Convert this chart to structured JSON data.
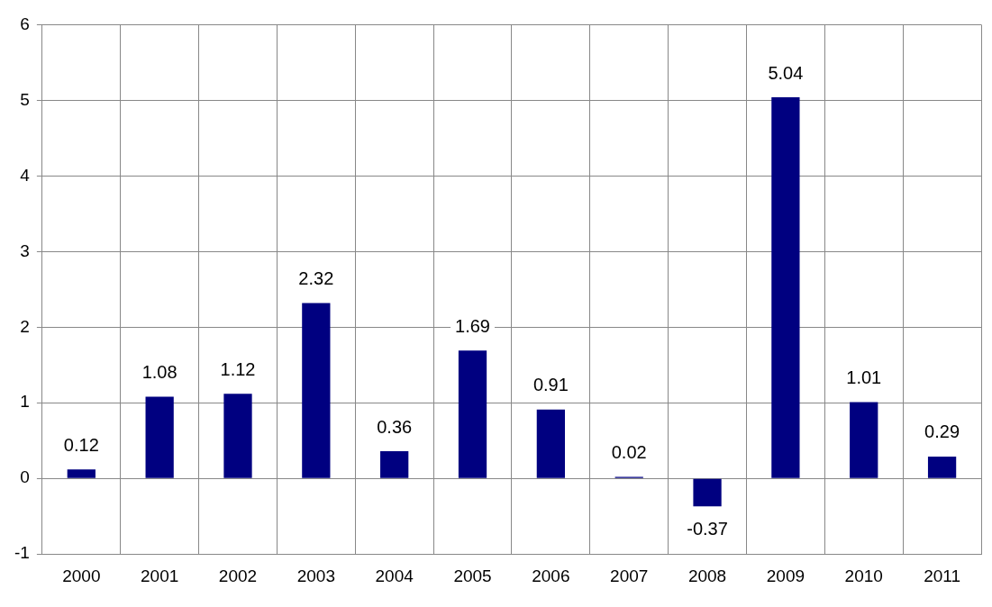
{
  "chart_data": {
    "type": "bar",
    "categories": [
      "2000",
      "2001",
      "2002",
      "2003",
      "2004",
      "2005",
      "2006",
      "2007",
      "2008",
      "2009",
      "2010",
      "2011"
    ],
    "values": [
      0.12,
      1.08,
      1.12,
      2.32,
      0.36,
      1.69,
      0.91,
      0.02,
      -0.37,
      5.04,
      1.01,
      0.29
    ],
    "color": "#000080",
    "ylim": [
      -1,
      6
    ],
    "yticks": [
      -1,
      0,
      1,
      2,
      3,
      4,
      5,
      6
    ],
    "grid": true,
    "legend": false,
    "data_labels": true
  }
}
